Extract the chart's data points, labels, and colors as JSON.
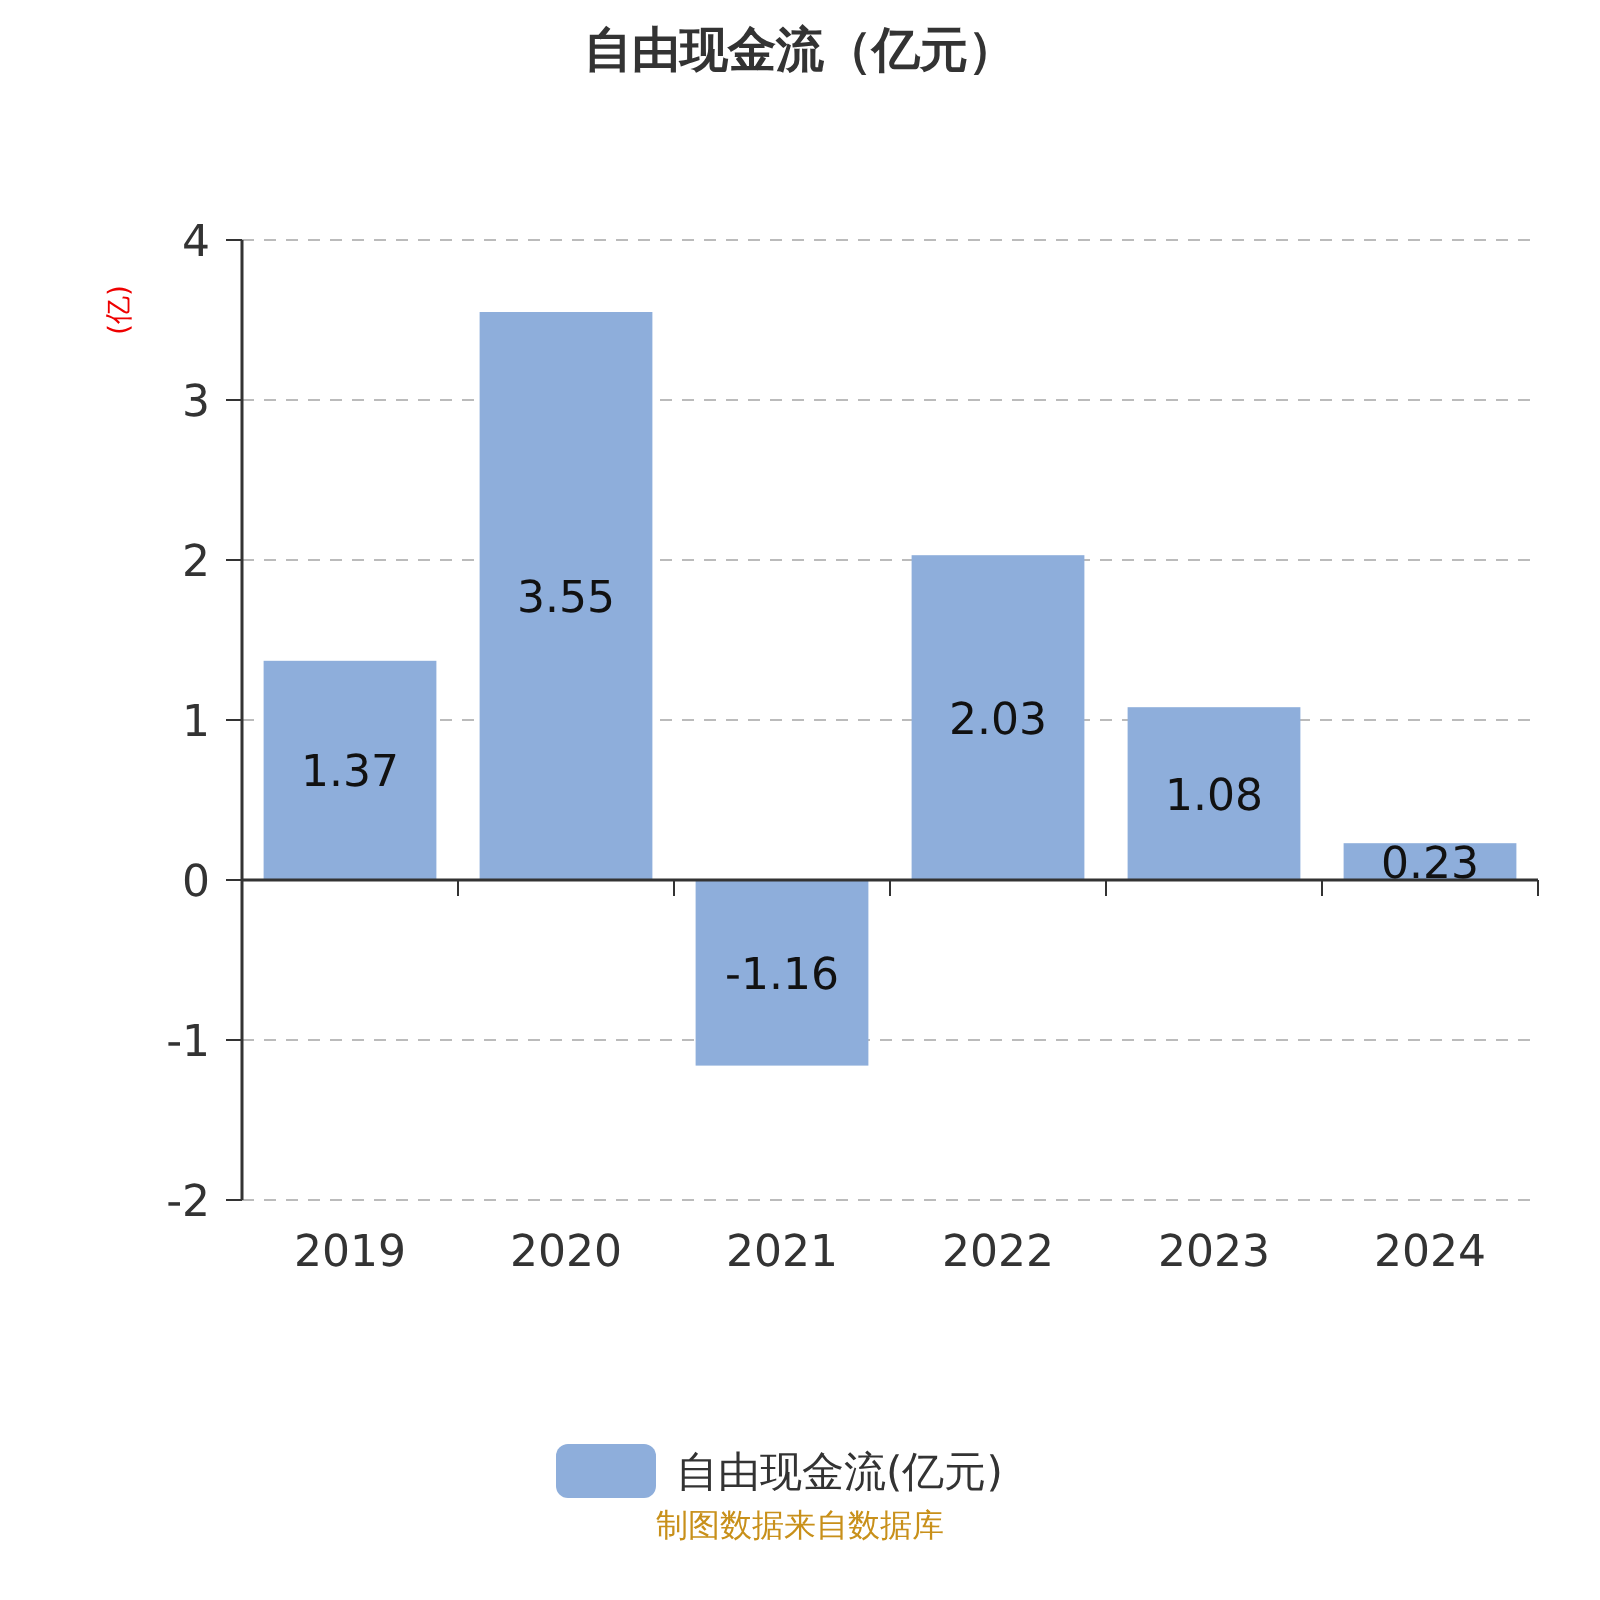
{
  "chart_data": {
    "type": "bar",
    "title": "自由现金流（亿元）",
    "ylabel": "(亿)",
    "categories": [
      "2019",
      "2020",
      "2021",
      "2022",
      "2023",
      "2024"
    ],
    "series": [
      {
        "name": "自由现金流(亿元)",
        "color": "#8eaedb",
        "values": [
          1.37,
          3.55,
          -1.16,
          2.03,
          1.08,
          0.23
        ]
      }
    ],
    "ylim": [
      -2,
      4
    ],
    "yticks": [
      -2,
      -1,
      0,
      1,
      2,
      3,
      4
    ],
    "grid": "y",
    "legend": "bottom",
    "data_labels": true,
    "annotations": [
      "制图数据来自数据库"
    ]
  }
}
